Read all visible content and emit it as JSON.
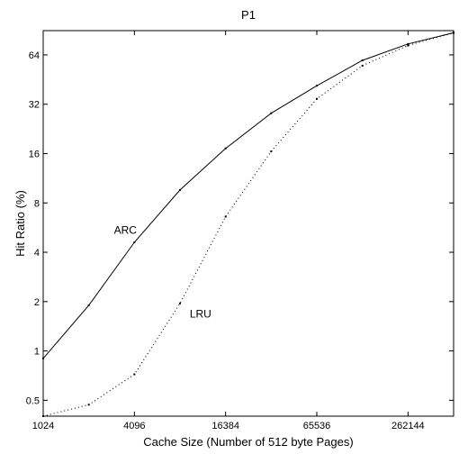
{
  "chart_data": {
    "type": "line",
    "title": "P1",
    "xlabel": "Cache Size (Number of 512 byte Pages)",
    "ylabel": "Hit Ratio (%)",
    "x_scale": "log2",
    "y_scale": "log2",
    "xlim": [
      1024,
      524288
    ],
    "ylim": [
      0.4,
      90
    ],
    "x_ticks": [
      1024,
      4096,
      16384,
      65536,
      262144
    ],
    "x_tick_labels": [
      "1024",
      "4096",
      "16384",
      "65536",
      "262144"
    ],
    "y_ticks": [
      0.5,
      1,
      2,
      4,
      8,
      16,
      32,
      64
    ],
    "y_tick_labels": [
      "0.5",
      "1",
      "2",
      "4",
      "8",
      "16",
      "32",
      "64"
    ],
    "x": [
      1024,
      2048,
      4096,
      8192,
      16384,
      32768,
      65536,
      131072,
      262144,
      524288
    ],
    "series": [
      {
        "name": "ARC",
        "style": "solid",
        "color": "#000000",
        "values": [
          0.9,
          1.9,
          4.6,
          9.6,
          17.2,
          28.2,
          41.5,
          59.3,
          74.6,
          87.3
        ]
      },
      {
        "name": "LRU",
        "style": "dotted",
        "color": "#000000",
        "values": [
          0.4,
          0.47,
          0.72,
          1.95,
          6.6,
          16.5,
          34.5,
          55.0,
          73.0,
          87.3
        ]
      }
    ],
    "annotations": [
      {
        "text": "ARC",
        "x": 3000,
        "y": 5.2
      },
      {
        "text": "LRU",
        "x": 9500,
        "y": 1.6
      }
    ],
    "grid": false,
    "legend": "none"
  }
}
